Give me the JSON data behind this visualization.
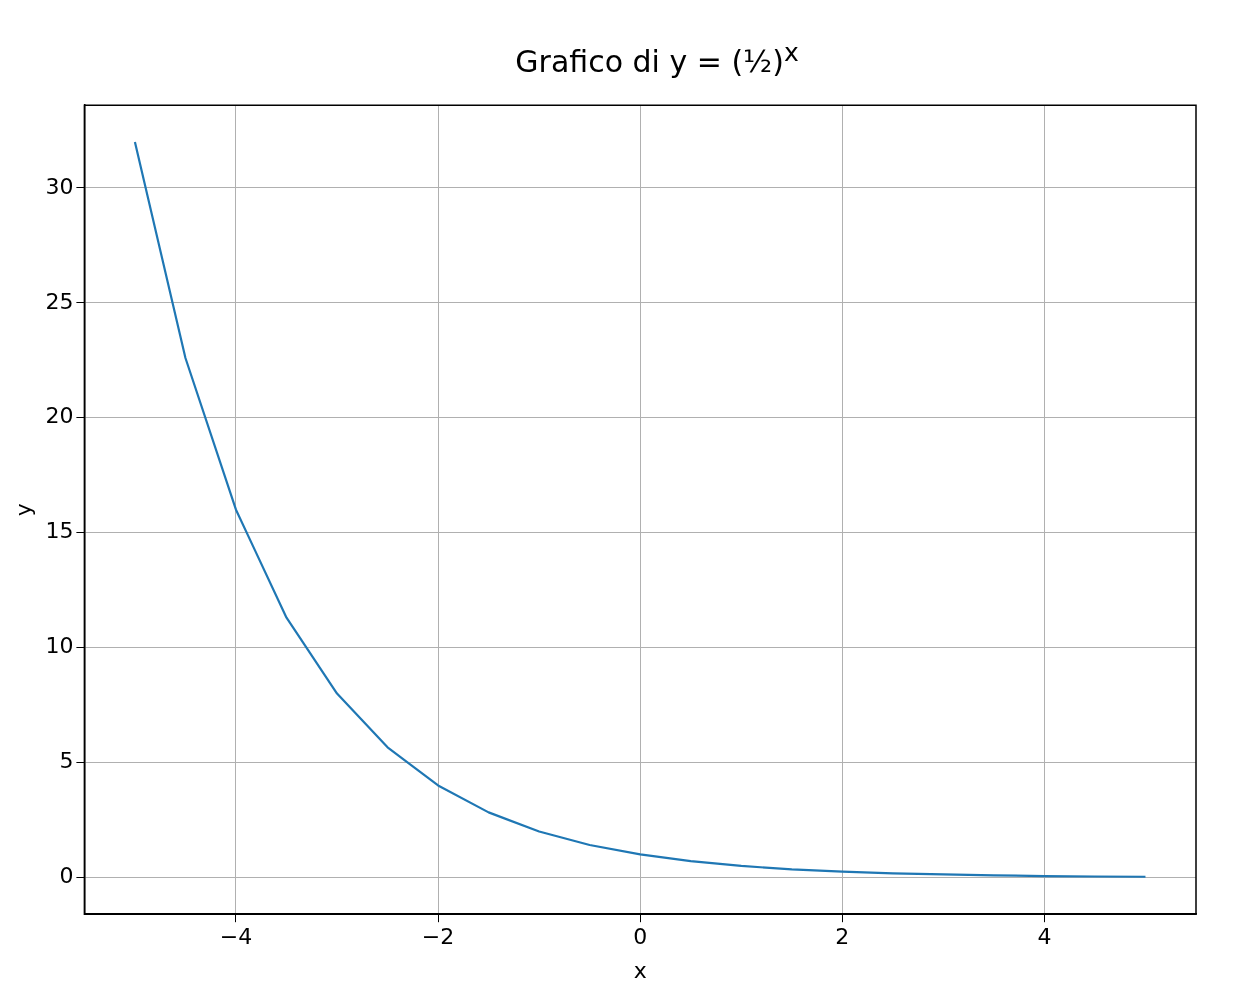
{
  "chart_data": {
    "type": "line",
    "title": "Grafico di y = (½)$^{x}$",
    "xlabel": "x",
    "ylabel": "y",
    "x": [
      -5,
      -4.5,
      -4,
      -3.5,
      -3,
      -2.5,
      -2,
      -1.5,
      -1,
      -0.5,
      0,
      0.5,
      1,
      1.5,
      2,
      2.5,
      3,
      3.5,
      4,
      4.5,
      5
    ],
    "series": [
      {
        "color": "#1f77b4",
        "values": [
          32,
          22.6,
          16,
          11.3,
          8,
          5.66,
          4,
          2.83,
          2,
          1.41,
          1,
          0.71,
          0.5,
          0.35,
          0.25,
          0.18,
          0.13,
          0.09,
          0.06,
          0.04,
          0.03
        ]
      }
    ],
    "xlim": [
      -5.5,
      5.5
    ],
    "xticks": [
      {
        "value": -4,
        "label": "−4"
      },
      {
        "value": -2,
        "label": "−2"
      },
      0,
      2,
      4
    ],
    "ylim": [
      -1.6,
      33.6
    ],
    "yticks": [
      0,
      5,
      10,
      15,
      20,
      25,
      30
    ],
    "grid": true,
    "legend": false,
    "marker": "none",
    "line_style": "solid"
  }
}
